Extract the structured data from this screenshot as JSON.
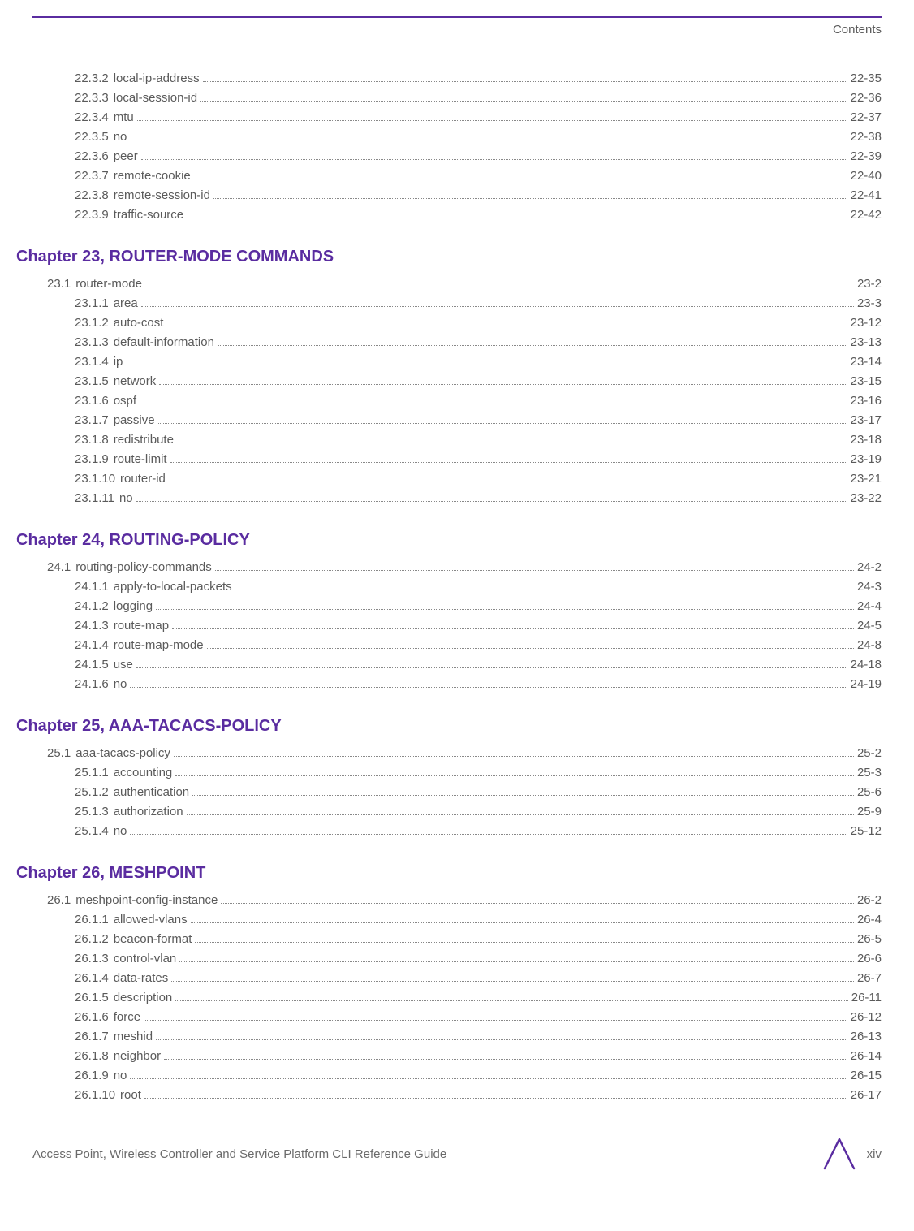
{
  "header": {
    "label": "Contents"
  },
  "colors": {
    "accent": "#5a2ca0",
    "text": "#5a5a5a",
    "dots": "#888888",
    "background": "#ffffff"
  },
  "initial_entries": [
    {
      "level": 2,
      "num": "22.3.2",
      "title": "local-ip-address",
      "page": "22-35"
    },
    {
      "level": 2,
      "num": "22.3.3",
      "title": "local-session-id",
      "page": "22-36"
    },
    {
      "level": 2,
      "num": "22.3.4",
      "title": "mtu",
      "page": "22-37"
    },
    {
      "level": 2,
      "num": "22.3.5",
      "title": "no",
      "page": "22-38"
    },
    {
      "level": 2,
      "num": "22.3.6",
      "title": "peer",
      "page": "22-39"
    },
    {
      "level": 2,
      "num": "22.3.7",
      "title": "remote-cookie",
      "page": "22-40"
    },
    {
      "level": 2,
      "num": "22.3.8",
      "title": "remote-session-id",
      "page": "22-41"
    },
    {
      "level": 2,
      "num": "22.3.9",
      "title": "traffic-source",
      "page": "22-42"
    }
  ],
  "chapters": [
    {
      "heading": "Chapter 23, ROUTER-MODE COMMANDS",
      "entries": [
        {
          "level": 1,
          "num": "23.1",
          "title": "router-mode",
          "page": "23-2"
        },
        {
          "level": 2,
          "num": "23.1.1",
          "title": "area",
          "page": "23-3"
        },
        {
          "level": 2,
          "num": "23.1.2",
          "title": "auto-cost",
          "page": "23-12"
        },
        {
          "level": 2,
          "num": "23.1.3",
          "title": "default-information",
          "page": "23-13"
        },
        {
          "level": 2,
          "num": "23.1.4",
          "title": "ip",
          "page": "23-14"
        },
        {
          "level": 2,
          "num": "23.1.5",
          "title": "network",
          "page": "23-15"
        },
        {
          "level": 2,
          "num": "23.1.6",
          "title": "ospf",
          "page": "23-16"
        },
        {
          "level": 2,
          "num": "23.1.7",
          "title": "passive",
          "page": "23-17"
        },
        {
          "level": 2,
          "num": "23.1.8",
          "title": "redistribute",
          "page": "23-18"
        },
        {
          "level": 2,
          "num": "23.1.9",
          "title": "route-limit",
          "page": "23-19"
        },
        {
          "level": 2,
          "num": "23.1.10",
          "title": "router-id",
          "page": "23-21"
        },
        {
          "level": 2,
          "num": "23.1.11",
          "title": "no",
          "page": "23-22"
        }
      ]
    },
    {
      "heading": "Chapter 24, ROUTING-POLICY",
      "entries": [
        {
          "level": 1,
          "num": "24.1",
          "title": "routing-policy-commands",
          "page": "24-2"
        },
        {
          "level": 2,
          "num": "24.1.1",
          "title": "apply-to-local-packets",
          "page": "24-3"
        },
        {
          "level": 2,
          "num": "24.1.2",
          "title": "logging",
          "page": "24-4"
        },
        {
          "level": 2,
          "num": "24.1.3",
          "title": "route-map",
          "page": "24-5"
        },
        {
          "level": 2,
          "num": "24.1.4",
          "title": "route-map-mode",
          "page": "24-8"
        },
        {
          "level": 2,
          "num": "24.1.5",
          "title": "use",
          "page": "24-18"
        },
        {
          "level": 2,
          "num": "24.1.6",
          "title": "no",
          "page": "24-19"
        }
      ]
    },
    {
      "heading": "Chapter 25, AAA-TACACS-POLICY",
      "entries": [
        {
          "level": 1,
          "num": "25.1",
          "title": "aaa-tacacs-policy",
          "page": "25-2"
        },
        {
          "level": 2,
          "num": "25.1.1",
          "title": "accounting",
          "page": "25-3"
        },
        {
          "level": 2,
          "num": "25.1.2",
          "title": "authentication",
          "page": "25-6"
        },
        {
          "level": 2,
          "num": "25.1.3",
          "title": "authorization",
          "page": "25-9"
        },
        {
          "level": 2,
          "num": "25.1.4",
          "title": "no",
          "page": "25-12"
        }
      ]
    },
    {
      "heading": "Chapter 26, MESHPOINT",
      "entries": [
        {
          "level": 1,
          "num": "26.1",
          "title": "meshpoint-config-instance",
          "page": "26-2"
        },
        {
          "level": 2,
          "num": "26.1.1",
          "title": "allowed-vlans",
          "page": "26-4"
        },
        {
          "level": 2,
          "num": "26.1.2",
          "title": "beacon-format",
          "page": "26-5"
        },
        {
          "level": 2,
          "num": "26.1.3",
          "title": "control-vlan",
          "page": "26-6"
        },
        {
          "level": 2,
          "num": "26.1.4",
          "title": "data-rates",
          "page": "26-7"
        },
        {
          "level": 2,
          "num": "26.1.5",
          "title": "description",
          "page": "26-11"
        },
        {
          "level": 2,
          "num": "26.1.6",
          "title": "force",
          "page": "26-12"
        },
        {
          "level": 2,
          "num": "26.1.7",
          "title": "meshid",
          "page": "26-13"
        },
        {
          "level": 2,
          "num": "26.1.8",
          "title": "neighbor",
          "page": "26-14"
        },
        {
          "level": 2,
          "num": "26.1.9",
          "title": "no",
          "page": "26-15"
        },
        {
          "level": 2,
          "num": "26.1.10",
          "title": "root",
          "page": "26-17"
        }
      ]
    }
  ],
  "footer": {
    "left": "Access Point, Wireless Controller and Service Platform CLI Reference Guide",
    "page_num": "xiv"
  }
}
